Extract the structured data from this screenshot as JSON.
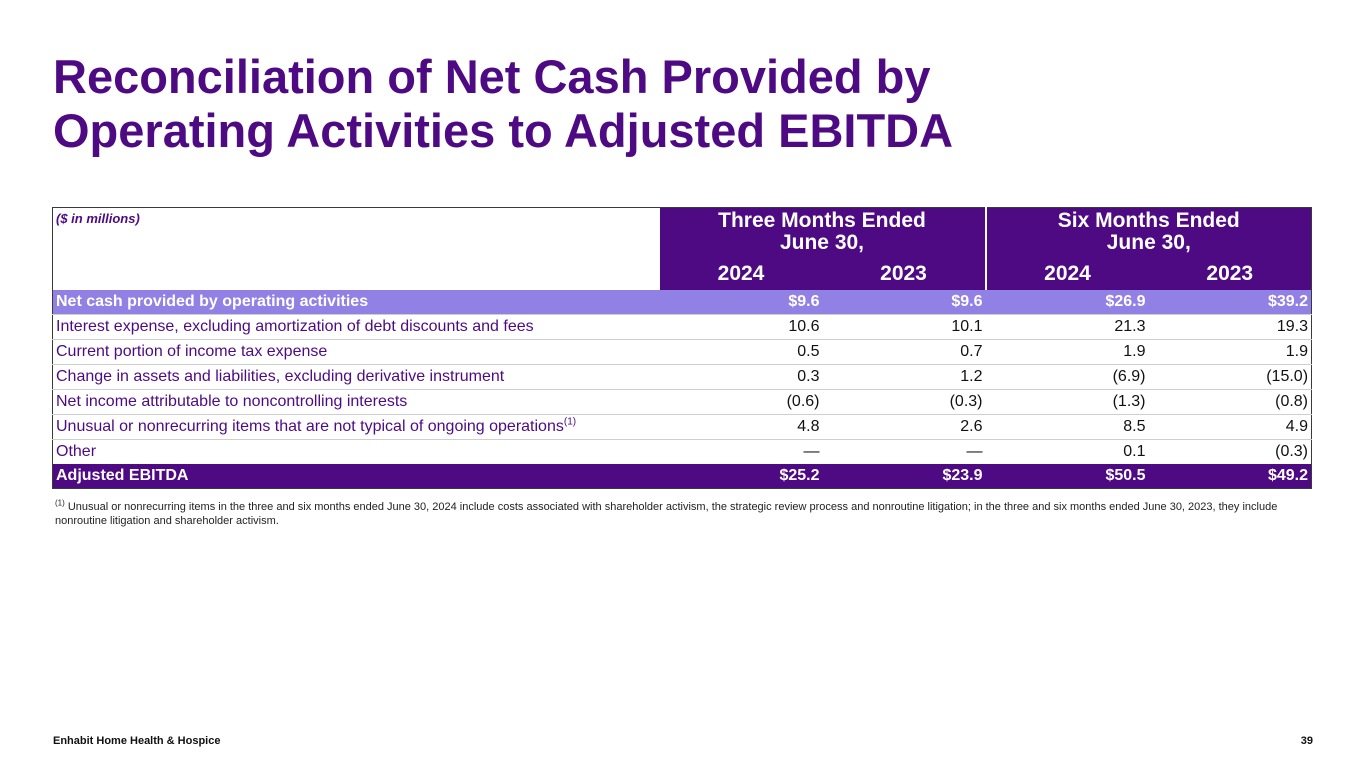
{
  "title": {
    "line1": "Reconciliation of Net Cash Provided by",
    "line2": "Operating Activities to Adjusted EBITDA"
  },
  "table": {
    "unit_label": "($ in millions)",
    "groups": [
      {
        "line1": "Three Months Ended",
        "line2": "June 30,"
      },
      {
        "line1": "Six Months Ended",
        "line2": "June 30,"
      }
    ],
    "years": [
      "2024",
      "2023",
      "2024",
      "2023"
    ],
    "rows": [
      {
        "label": "Net cash provided by operating activities",
        "values": [
          "$9.6",
          "$9.6",
          "$26.9",
          "$39.2"
        ]
      },
      {
        "label": "Interest expense, excluding amortization of debt discounts and fees",
        "values": [
          "10.6",
          "10.1",
          "21.3",
          "19.3"
        ]
      },
      {
        "label": "Current portion of income tax expense",
        "values": [
          "0.5",
          "0.7",
          "1.9",
          "1.9"
        ]
      },
      {
        "label": "Change in assets and liabilities, excluding derivative instrument",
        "values": [
          "0.3",
          "1.2",
          "(6.9)",
          "(15.0)"
        ]
      },
      {
        "label": "Net income attributable to noncontrolling interests",
        "values": [
          "(0.6)",
          "(0.3)",
          "(1.3)",
          "(0.8)"
        ]
      },
      {
        "label": "Unusual or nonrecurring items that are not typical of ongoing operations",
        "footnote_ref": "(1)",
        "values": [
          "4.8",
          "2.6",
          "8.5",
          "4.9"
        ]
      },
      {
        "label": "Other",
        "values": [
          "—",
          "—",
          "0.1",
          "(0.3)"
        ]
      },
      {
        "label": "Adjusted EBITDA",
        "values": [
          "$25.2",
          "$23.9",
          "$50.5",
          "$49.2"
        ]
      }
    ]
  },
  "footnote": {
    "marker": "(1)",
    "text": "Unusual or nonrecurring items in the three and six months ended June 30, 2024 include costs associated with shareholder activism, the strategic review process and nonroutine litigation; in the three and six months ended June 30, 2023, they include nonroutine litigation and shareholder activism."
  },
  "footer": {
    "brand": "Enhabit Home Health & Hospice",
    "page_number": "39"
  },
  "colors": {
    "brand_purple": "#4e0a83",
    "highlight_lavender": "#9181e4"
  }
}
